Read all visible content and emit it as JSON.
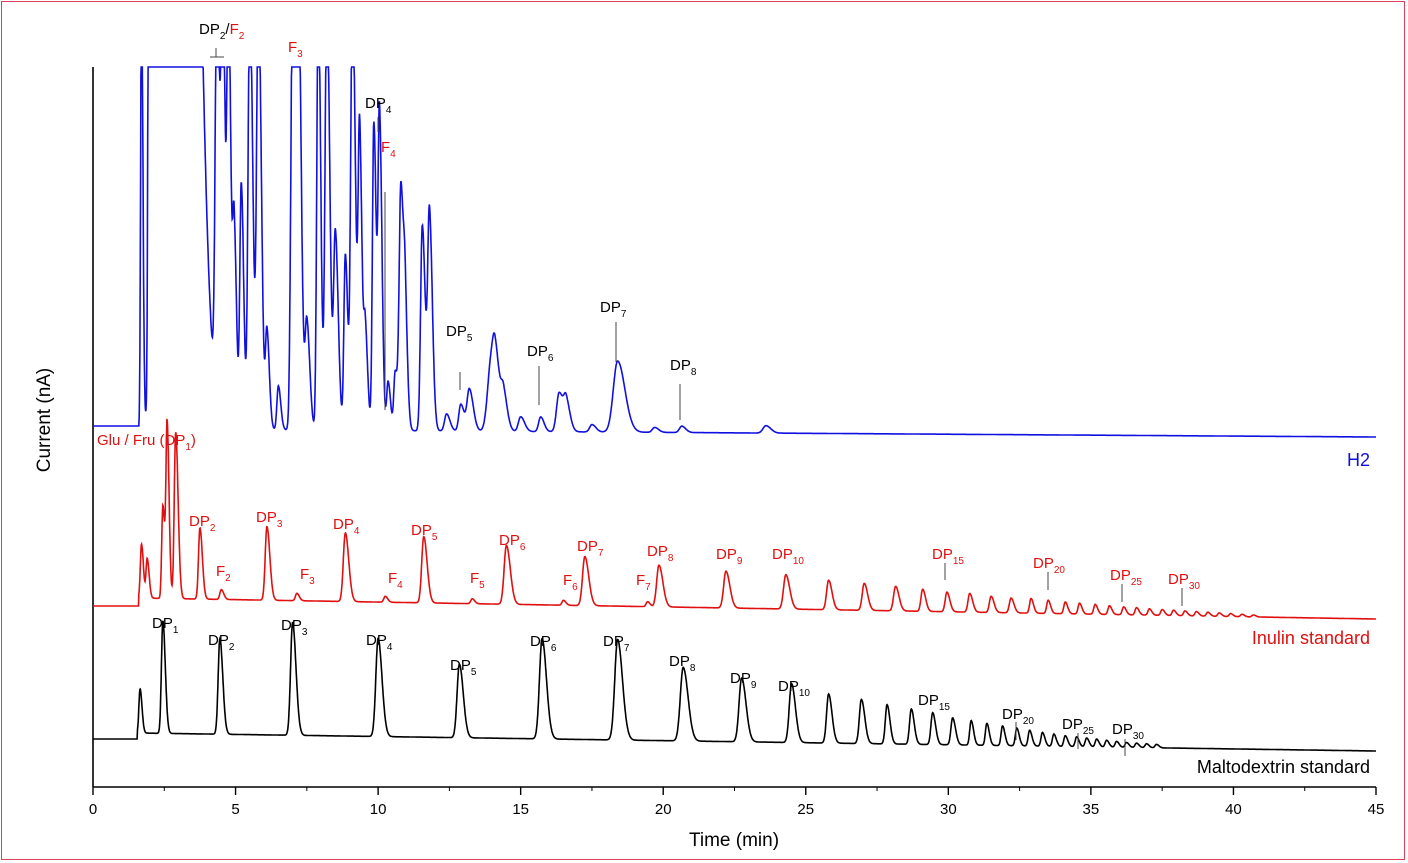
{
  "chart_data": {
    "type": "line",
    "xlabel": "Time (min)",
    "ylabel": "Current (nA)",
    "xlim": [
      0,
      45
    ],
    "x_ticks": [
      0,
      5,
      10,
      15,
      20,
      25,
      30,
      35,
      40,
      45
    ],
    "grid": false,
    "colors": {
      "h2": "#1010e0",
      "inulin": "#e01010",
      "malto": "#000000",
      "frame": "#e0405a"
    },
    "series": [
      {
        "name": "H2",
        "color": "#1010e0",
        "baseline": 0.0,
        "peaks": [
          {
            "t": 12.4,
            "h": 0.35,
            "w": 0.07
          },
          {
            "t": 12.9,
            "h": 0.55,
            "w": 0.07
          },
          {
            "t": 13.2,
            "h": 0.85,
            "w": 0.08
          },
          {
            "t": 13.95,
            "h": 1.25,
            "w": 0.12
          },
          {
            "t": 14.1,
            "h": 1.0,
            "w": 0.1
          },
          {
            "t": 14.4,
            "h": 0.65,
            "w": 0.08
          },
          {
            "t": 15.0,
            "h": 0.3,
            "w": 0.08
          },
          {
            "t": 15.7,
            "h": 0.3,
            "w": 0.07
          },
          {
            "t": 16.35,
            "h": 0.8,
            "w": 0.09
          },
          {
            "t": 16.6,
            "h": 0.55,
            "w": 0.08
          },
          {
            "t": 17.5,
            "h": 0.15,
            "w": 0.08
          },
          {
            "t": 18.4,
            "h": 1.45,
            "w": 0.15
          },
          {
            "t": 19.7,
            "h": 0.1,
            "w": 0.08
          },
          {
            "t": 20.65,
            "h": 0.13,
            "w": 0.08
          },
          {
            "t": 23.6,
            "h": 0.15,
            "w": 0.1
          }
        ]
      },
      {
        "name": "Inulin standard",
        "color": "#e01010",
        "baseline": 0.0,
        "peaks": [
          {
            "t": 1.7,
            "h": 1.1,
            "w": 0.04
          },
          {
            "t": 1.9,
            "h": 0.8,
            "w": 0.04
          },
          {
            "t": 2.45,
            "h": 1.9,
            "w": 0.04
          },
          {
            "t": 2.6,
            "h": 3.5,
            "w": 0.04
          },
          {
            "t": 2.9,
            "h": 3.4,
            "w": 0.05
          },
          {
            "t": 3.75,
            "h": 1.45,
            "w": 0.05
          },
          {
            "t": 4.5,
            "h": 0.2,
            "w": 0.05
          },
          {
            "t": 6.1,
            "h": 1.5,
            "w": 0.06
          },
          {
            "t": 7.15,
            "h": 0.15,
            "w": 0.05
          },
          {
            "t": 8.85,
            "h": 1.4,
            "w": 0.07
          },
          {
            "t": 10.25,
            "h": 0.12,
            "w": 0.05
          },
          {
            "t": 11.6,
            "h": 1.35,
            "w": 0.07
          },
          {
            "t": 13.3,
            "h": 0.1,
            "w": 0.05
          },
          {
            "t": 14.5,
            "h": 1.2,
            "w": 0.08
          },
          {
            "t": 16.5,
            "h": 0.1,
            "w": 0.05
          },
          {
            "t": 17.25,
            "h": 1.0,
            "w": 0.08
          },
          {
            "t": 19.45,
            "h": 0.1,
            "w": 0.05
          },
          {
            "t": 19.85,
            "h": 0.85,
            "w": 0.08
          },
          {
            "t": 22.2,
            "h": 0.75,
            "w": 0.08
          },
          {
            "t": 24.3,
            "h": 0.7,
            "w": 0.08
          },
          {
            "t": 25.8,
            "h": 0.6,
            "w": 0.07
          },
          {
            "t": 27.05,
            "h": 0.55,
            "w": 0.07
          },
          {
            "t": 28.15,
            "h": 0.5,
            "w": 0.07
          },
          {
            "t": 29.1,
            "h": 0.45,
            "w": 0.06
          },
          {
            "t": 29.95,
            "h": 0.4,
            "w": 0.06
          },
          {
            "t": 30.75,
            "h": 0.38,
            "w": 0.06
          },
          {
            "t": 31.5,
            "h": 0.33,
            "w": 0.06
          },
          {
            "t": 32.2,
            "h": 0.3,
            "w": 0.06
          },
          {
            "t": 32.9,
            "h": 0.3,
            "w": 0.05
          },
          {
            "t": 33.5,
            "h": 0.27,
            "w": 0.05
          },
          {
            "t": 34.1,
            "h": 0.24,
            "w": 0.05
          },
          {
            "t": 34.6,
            "h": 0.22,
            "w": 0.05
          },
          {
            "t": 35.15,
            "h": 0.2,
            "w": 0.05
          },
          {
            "t": 35.65,
            "h": 0.18,
            "w": 0.05
          },
          {
            "t": 36.15,
            "h": 0.16,
            "w": 0.05
          },
          {
            "t": 36.6,
            "h": 0.15,
            "w": 0.05
          },
          {
            "t": 37.05,
            "h": 0.13,
            "w": 0.05
          },
          {
            "t": 37.5,
            "h": 0.12,
            "w": 0.05
          },
          {
            "t": 37.9,
            "h": 0.11,
            "w": 0.05
          },
          {
            "t": 38.3,
            "h": 0.1,
            "w": 0.05
          },
          {
            "t": 38.7,
            "h": 0.09,
            "w": 0.05
          },
          {
            "t": 39.1,
            "h": 0.08,
            "w": 0.05
          },
          {
            "t": 39.5,
            "h": 0.07,
            "w": 0.05
          },
          {
            "t": 39.9,
            "h": 0.06,
            "w": 0.05
          },
          {
            "t": 40.3,
            "h": 0.05,
            "w": 0.05
          },
          {
            "t": 40.7,
            "h": 0.04,
            "w": 0.05
          }
        ]
      },
      {
        "name": "Maltodextrin standard",
        "color": "#000000",
        "baseline": 0.0,
        "peaks": [
          {
            "t": 1.65,
            "h": 0.9,
            "w": 0.04
          },
          {
            "t": 2.45,
            "h": 2.3,
            "w": 0.05
          },
          {
            "t": 4.45,
            "h": 1.95,
            "w": 0.06
          },
          {
            "t": 7.0,
            "h": 2.3,
            "w": 0.07
          },
          {
            "t": 10.0,
            "h": 2.0,
            "w": 0.08
          },
          {
            "t": 12.85,
            "h": 1.5,
            "w": 0.08
          },
          {
            "t": 15.75,
            "h": 2.05,
            "w": 0.09
          },
          {
            "t": 18.4,
            "h": 2.05,
            "w": 0.1
          },
          {
            "t": 20.7,
            "h": 1.5,
            "w": 0.1
          },
          {
            "t": 22.75,
            "h": 1.3,
            "w": 0.09
          },
          {
            "t": 24.5,
            "h": 1.2,
            "w": 0.08
          },
          {
            "t": 25.8,
            "h": 1.0,
            "w": 0.07
          },
          {
            "t": 26.95,
            "h": 0.9,
            "w": 0.07
          },
          {
            "t": 27.85,
            "h": 0.8,
            "w": 0.06
          },
          {
            "t": 28.7,
            "h": 0.72,
            "w": 0.06
          },
          {
            "t": 29.45,
            "h": 0.65,
            "w": 0.06
          },
          {
            "t": 30.15,
            "h": 0.55,
            "w": 0.06
          },
          {
            "t": 30.8,
            "h": 0.5,
            "w": 0.05
          },
          {
            "t": 31.35,
            "h": 0.45,
            "w": 0.05
          },
          {
            "t": 31.9,
            "h": 0.4,
            "w": 0.05
          },
          {
            "t": 32.4,
            "h": 0.36,
            "w": 0.05
          },
          {
            "t": 32.85,
            "h": 0.32,
            "w": 0.05
          },
          {
            "t": 33.3,
            "h": 0.28,
            "w": 0.05
          },
          {
            "t": 33.7,
            "h": 0.25,
            "w": 0.05
          },
          {
            "t": 34.1,
            "h": 0.22,
            "w": 0.05
          },
          {
            "t": 34.5,
            "h": 0.2,
            "w": 0.05
          },
          {
            "t": 34.85,
            "h": 0.18,
            "w": 0.05
          },
          {
            "t": 35.2,
            "h": 0.16,
            "w": 0.05
          },
          {
            "t": 35.55,
            "h": 0.14,
            "w": 0.05
          },
          {
            "t": 35.9,
            "h": 0.12,
            "w": 0.05
          },
          {
            "t": 36.25,
            "h": 0.1,
            "w": 0.05
          },
          {
            "t": 36.6,
            "h": 0.09,
            "w": 0.05
          },
          {
            "t": 36.95,
            "h": 0.08,
            "w": 0.05
          },
          {
            "t": 37.3,
            "h": 0.07,
            "w": 0.05
          }
        ]
      }
    ],
    "series_labels": [
      "H2",
      "Inulin standard",
      "Maltodextrin standard"
    ],
    "annotations": {
      "h2": [
        {
          "base": "DP",
          "sub": "2",
          "base2": "/",
          "base3": "F",
          "sub3": "2",
          "t": 4.3
        },
        {
          "base": "F",
          "sub": "3",
          "t": 7.1,
          "color": "red"
        },
        {
          "base": "DP",
          "sub": "4",
          "t": 10.0
        },
        {
          "base": "F",
          "sub": "4",
          "t": 10.35,
          "color": "red"
        },
        {
          "base": "DP",
          "sub": "5",
          "t": 12.95
        },
        {
          "base": "DP",
          "sub": "6",
          "t": 15.7
        },
        {
          "base": "DP",
          "sub": "7",
          "t": 18.4
        },
        {
          "base": "DP",
          "sub": "8",
          "t": 20.65
        }
      ],
      "inulin": [
        {
          "text": "Glu / Fru (DP",
          "sub": "1",
          "tail": ")"
        },
        {
          "base": "DP",
          "sub": "2"
        },
        {
          "base": "DP",
          "sub": "3"
        },
        {
          "base": "DP",
          "sub": "4"
        },
        {
          "base": "DP",
          "sub": "5"
        },
        {
          "base": "DP",
          "sub": "6"
        },
        {
          "base": "DP",
          "sub": "7"
        },
        {
          "base": "DP",
          "sub": "8"
        },
        {
          "base": "DP",
          "sub": "9"
        },
        {
          "base": "DP",
          "sub": "10"
        },
        {
          "base": "DP",
          "sub": "15"
        },
        {
          "base": "DP",
          "sub": "20"
        },
        {
          "base": "DP",
          "sub": "25"
        },
        {
          "base": "DP",
          "sub": "30"
        },
        {
          "base": "F",
          "sub": "2"
        },
        {
          "base": "F",
          "sub": "3"
        },
        {
          "base": "F",
          "sub": "4"
        },
        {
          "base": "F",
          "sub": "5"
        },
        {
          "base": "F",
          "sub": "6"
        },
        {
          "base": "F",
          "sub": "7"
        }
      ],
      "malto": [
        {
          "base": "DP",
          "sub": "1"
        },
        {
          "base": "DP",
          "sub": "2"
        },
        {
          "base": "DP",
          "sub": "3"
        },
        {
          "base": "DP",
          "sub": "4"
        },
        {
          "base": "DP",
          "sub": "5"
        },
        {
          "base": "DP",
          "sub": "6"
        },
        {
          "base": "DP",
          "sub": "7"
        },
        {
          "base": "DP",
          "sub": "8"
        },
        {
          "base": "DP",
          "sub": "9"
        },
        {
          "base": "DP",
          "sub": "10"
        },
        {
          "base": "DP",
          "sub": "15"
        },
        {
          "base": "DP",
          "sub": "20"
        },
        {
          "base": "DP",
          "sub": "25"
        },
        {
          "base": "DP",
          "sub": "30"
        }
      ]
    }
  }
}
